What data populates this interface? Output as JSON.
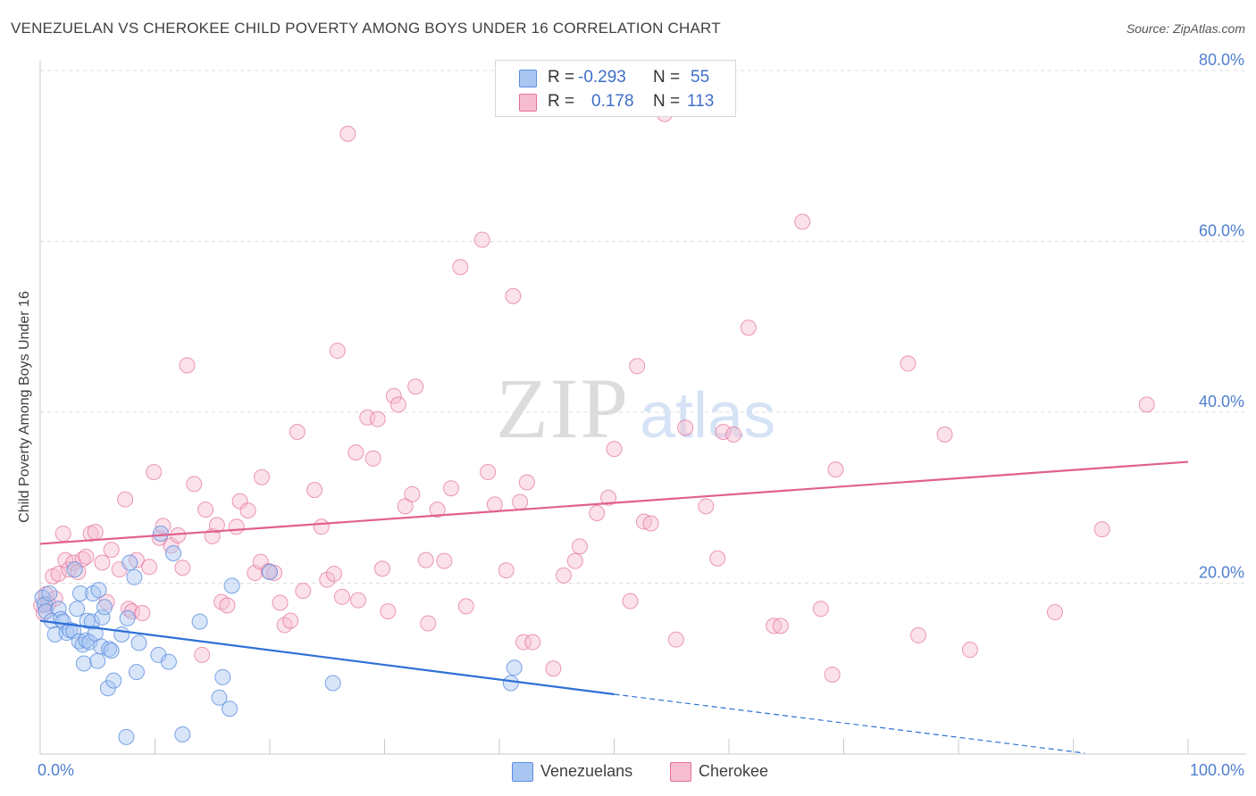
{
  "title": "VENEZUELAN VS CHEROKEE CHILD POVERTY AMONG BOYS UNDER 16 CORRELATION CHART",
  "source": "Source: ZipAtlas.com",
  "watermark": {
    "zip": "ZIP",
    "atlas": "atlas"
  },
  "colors": {
    "blue": "#5b8ee0",
    "blue_fill": "#a9c6f2",
    "pink": "#e46f98",
    "pink_fill": "#f6bdd0",
    "tick_text": "#4f7fd0",
    "grid": "#dddddd"
  },
  "stats": [
    {
      "r_label": "R =",
      "r_value": "-0.293",
      "n_label": "N =",
      "n_value": "55"
    },
    {
      "r_label": "R =",
      "r_value": "0.178",
      "n_label": "N =",
      "n_value": "113"
    }
  ],
  "legend": [
    {
      "label": "Venezuelans"
    },
    {
      "label": "Cherokee"
    }
  ],
  "chart_data": {
    "type": "scatter",
    "ylabel": "Child Poverty Among Boys Under 16",
    "xlabel": "",
    "xlim": [
      0,
      100
    ],
    "ylim": [
      0,
      80
    ],
    "x_tick_labels": [
      "0.0%",
      "100.0%"
    ],
    "y_ticks": [
      20,
      40,
      60,
      80
    ],
    "y_tick_labels": [
      "20.0%",
      "40.0%",
      "60.0%",
      "80.0%"
    ],
    "grid": true,
    "legend_position": "bottom-center",
    "series": [
      {
        "name": "Venezuelans",
        "r": -0.293,
        "n": 55,
        "trend": {
          "x0": 0,
          "y0": 15.6,
          "x1": 50,
          "y1": 7.0,
          "dashed_to_x": 100,
          "dashed_to_y": -1.6
        },
        "points": [
          [
            0.2,
            18.3
          ],
          [
            0.4,
            17.5
          ],
          [
            0.5,
            16.7
          ],
          [
            0.8,
            18.8
          ],
          [
            1,
            15.6
          ],
          [
            1.3,
            14.0
          ],
          [
            1.6,
            17.0
          ],
          [
            1.8,
            15.8
          ],
          [
            2.0,
            15.5
          ],
          [
            2.3,
            14.2
          ],
          [
            2.6,
            14.5
          ],
          [
            2.9,
            14.4
          ],
          [
            3.0,
            21.6
          ],
          [
            3.2,
            17.0
          ],
          [
            3.4,
            13.2
          ],
          [
            3.5,
            18.8
          ],
          [
            3.7,
            12.8
          ],
          [
            3.8,
            10.6
          ],
          [
            4.0,
            13.3
          ],
          [
            4.1,
            15.6
          ],
          [
            4.3,
            13.1
          ],
          [
            4.5,
            15.5
          ],
          [
            4.6,
            18.8
          ],
          [
            4.8,
            14.1
          ],
          [
            5.0,
            10.9
          ],
          [
            5.1,
            19.2
          ],
          [
            5.3,
            12.6
          ],
          [
            5.4,
            16.0
          ],
          [
            5.6,
            17.2
          ],
          [
            5.9,
            7.7
          ],
          [
            6.0,
            12.3
          ],
          [
            6.2,
            12.1
          ],
          [
            6.4,
            8.6
          ],
          [
            7.1,
            14.0
          ],
          [
            7.5,
            2.0
          ],
          [
            7.6,
            15.9
          ],
          [
            7.8,
            22.4
          ],
          [
            8.2,
            20.7
          ],
          [
            8.4,
            9.6
          ],
          [
            8.6,
            13.0
          ],
          [
            10.3,
            11.6
          ],
          [
            10.5,
            25.8
          ],
          [
            11.2,
            10.8
          ],
          [
            11.6,
            23.5
          ],
          [
            12.4,
            2.3
          ],
          [
            13.9,
            15.5
          ],
          [
            15.6,
            6.6
          ],
          [
            15.9,
            9.0
          ],
          [
            16.5,
            5.3
          ],
          [
            16.7,
            19.7
          ],
          [
            20.0,
            21.3
          ],
          [
            25.5,
            8.3
          ],
          [
            41.0,
            8.3
          ],
          [
            41.3,
            10.1
          ]
        ]
      },
      {
        "name": "Cherokee",
        "r": 0.178,
        "n": 113,
        "trend": {
          "x0": 0,
          "y0": 24.6,
          "x1": 100,
          "y1": 34.2
        },
        "points": [
          [
            0.1,
            17.4
          ],
          [
            0.3,
            16.5
          ],
          [
            0.5,
            18.7
          ],
          [
            0.7,
            17.6
          ],
          [
            1.1,
            20.8
          ],
          [
            1.3,
            18.2
          ],
          [
            1.6,
            21.1
          ],
          [
            2.0,
            25.8
          ],
          [
            2.2,
            22.7
          ],
          [
            2.5,
            21.6
          ],
          [
            2.9,
            22.4
          ],
          [
            3.3,
            21.3
          ],
          [
            3.7,
            22.8
          ],
          [
            4.0,
            23.1
          ],
          [
            4.4,
            25.8
          ],
          [
            4.8,
            26.0
          ],
          [
            5.4,
            22.4
          ],
          [
            5.8,
            17.8
          ],
          [
            6.2,
            23.9
          ],
          [
            6.9,
            21.6
          ],
          [
            7.4,
            29.8
          ],
          [
            7.7,
            17.0
          ],
          [
            8.0,
            16.7
          ],
          [
            8.4,
            22.7
          ],
          [
            8.9,
            16.5
          ],
          [
            9.5,
            21.9
          ],
          [
            9.9,
            33.0
          ],
          [
            10.4,
            25.3
          ],
          [
            10.7,
            26.7
          ],
          [
            11.4,
            24.4
          ],
          [
            12.0,
            25.6
          ],
          [
            12.4,
            21.8
          ],
          [
            12.8,
            45.5
          ],
          [
            13.4,
            31.6
          ],
          [
            14.1,
            11.6
          ],
          [
            14.4,
            28.6
          ],
          [
            15.0,
            25.5
          ],
          [
            15.4,
            26.8
          ],
          [
            15.8,
            17.8
          ],
          [
            16.3,
            17.4
          ],
          [
            17.1,
            26.6
          ],
          [
            17.4,
            29.6
          ],
          [
            18.1,
            28.5
          ],
          [
            18.7,
            21.2
          ],
          [
            19.2,
            22.5
          ],
          [
            19.3,
            32.4
          ],
          [
            19.9,
            21.4
          ],
          [
            20.4,
            21.2
          ],
          [
            20.9,
            17.7
          ],
          [
            21.3,
            15.1
          ],
          [
            21.8,
            15.6
          ],
          [
            22.4,
            37.7
          ],
          [
            22.9,
            19.1
          ],
          [
            23.9,
            30.9
          ],
          [
            24.5,
            26.6
          ],
          [
            25.0,
            20.4
          ],
          [
            25.6,
            21.1
          ],
          [
            25.9,
            47.2
          ],
          [
            26.3,
            18.4
          ],
          [
            26.8,
            72.6
          ],
          [
            27.5,
            35.3
          ],
          [
            27.7,
            18.0
          ],
          [
            28.5,
            39.4
          ],
          [
            29.0,
            34.6
          ],
          [
            29.4,
            39.2
          ],
          [
            29.8,
            21.7
          ],
          [
            30.3,
            16.7
          ],
          [
            30.8,
            41.9
          ],
          [
            31.2,
            40.9
          ],
          [
            31.8,
            29.0
          ],
          [
            32.4,
            30.4
          ],
          [
            32.7,
            43.0
          ],
          [
            33.6,
            22.7
          ],
          [
            33.8,
            15.3
          ],
          [
            34.6,
            28.6
          ],
          [
            35.2,
            22.6
          ],
          [
            35.8,
            31.1
          ],
          [
            36.6,
            57.0
          ],
          [
            37.1,
            17.3
          ],
          [
            38.5,
            60.2
          ],
          [
            39.0,
            33.0
          ],
          [
            39.6,
            29.2
          ],
          [
            40.6,
            21.5
          ],
          [
            41.2,
            53.6
          ],
          [
            41.8,
            29.5
          ],
          [
            42.1,
            13.1
          ],
          [
            42.4,
            31.8
          ],
          [
            42.9,
            13.1
          ],
          [
            44.7,
            10.0
          ],
          [
            45.6,
            20.9
          ],
          [
            46.6,
            22.6
          ],
          [
            47.0,
            24.3
          ],
          [
            48.5,
            28.2
          ],
          [
            49.5,
            30.0
          ],
          [
            50.0,
            35.7
          ],
          [
            51.4,
            17.9
          ],
          [
            52.0,
            45.4
          ],
          [
            52.6,
            27.2
          ],
          [
            53.2,
            27.0
          ],
          [
            55.4,
            13.4
          ],
          [
            56.2,
            38.2
          ],
          [
            58.0,
            29.0
          ],
          [
            59.0,
            22.9
          ],
          [
            59.5,
            37.7
          ],
          [
            60.4,
            37.4
          ],
          [
            61.7,
            49.9
          ],
          [
            63.9,
            15.0
          ],
          [
            64.5,
            15.0
          ],
          [
            66.4,
            62.3
          ],
          [
            68.0,
            17.0
          ],
          [
            69.0,
            9.3
          ],
          [
            69.3,
            33.3
          ],
          [
            75.6,
            45.7
          ],
          [
            76.5,
            13.9
          ],
          [
            78.8,
            37.4
          ],
          [
            81.0,
            12.2
          ],
          [
            88.4,
            16.6
          ],
          [
            92.5,
            26.3
          ],
          [
            96.4,
            40.9
          ],
          [
            54.4,
            74.9
          ]
        ]
      }
    ]
  }
}
